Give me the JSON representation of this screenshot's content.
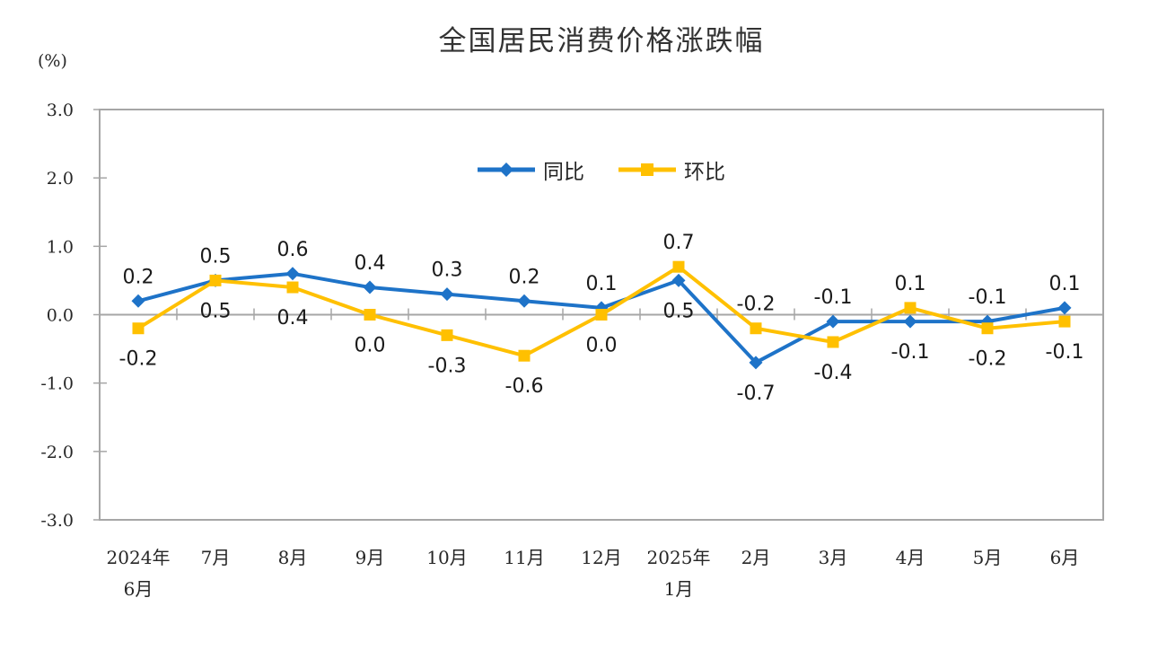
{
  "title": "全国居民消费价格涨跌幅",
  "y_axis_unit": "(%)",
  "legend": {
    "items": [
      "同比",
      "环比"
    ]
  },
  "chart_data": {
    "type": "line",
    "title": "全国居民消费价格涨跌幅",
    "xlabel": "",
    "ylabel": "(%)",
    "ylim": [
      -3.0,
      3.0
    ],
    "y_tick_values": [
      3,
      2,
      1,
      0,
      -1,
      -2,
      -3
    ],
    "y_tick_labels": [
      "3.0",
      "2.0",
      "1.0",
      "0.0",
      "-1.0",
      "-2.0",
      "-3.0"
    ],
    "grid": "zero-line-only",
    "legend_position": "top-center",
    "axis_color": "#A6A6A6",
    "tick_text_color": "#262626",
    "data_label_color": "#1a1a1a",
    "categories": [
      [
        "2024年",
        "6月"
      ],
      [
        "7月"
      ],
      [
        "8月"
      ],
      [
        "9月"
      ],
      [
        "10月"
      ],
      [
        "11月"
      ],
      [
        "12月"
      ],
      [
        "2025年",
        "1月"
      ],
      [
        "2月"
      ],
      [
        "3月"
      ],
      [
        "4月"
      ],
      [
        "5月"
      ],
      [
        "6月"
      ]
    ],
    "series": [
      {
        "name": "同比",
        "color": "#1E73C8",
        "marker": "diamond",
        "values": [
          0.2,
          0.5,
          0.6,
          0.4,
          0.3,
          0.2,
          0.1,
          0.5,
          -0.7,
          -0.1,
          -0.1,
          -0.1,
          0.1
        ],
        "labels": [
          "0.2",
          "0.5",
          "0.6",
          "0.4",
          "0.3",
          "0.2",
          "0.1",
          "0.5",
          "-0.7",
          "-0.1",
          "-0.1",
          "-0.1",
          "0.1"
        ]
      },
      {
        "name": "环比",
        "color": "#FFC000",
        "marker": "square",
        "values": [
          -0.2,
          0.5,
          0.4,
          0.0,
          -0.3,
          -0.6,
          0.0,
          0.7,
          -0.2,
          -0.4,
          0.1,
          -0.2,
          -0.1
        ],
        "labels": [
          "-0.2",
          "0.5",
          "0.4",
          "0.0",
          "-0.3",
          "-0.6",
          "0.0",
          "0.7",
          "-0.2",
          "-0.4",
          "0.1",
          "-0.2",
          "-0.1"
        ]
      }
    ]
  }
}
